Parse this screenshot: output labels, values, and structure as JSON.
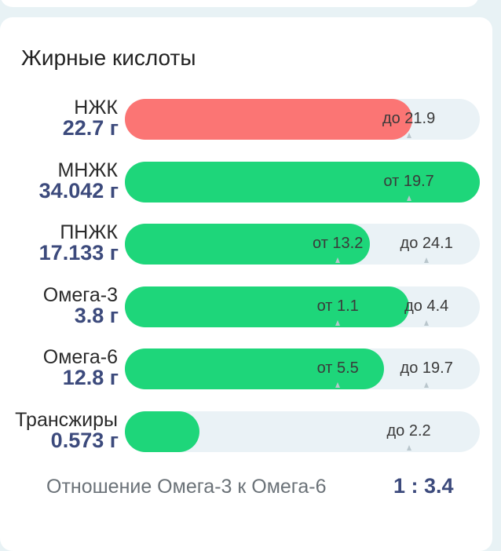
{
  "section_title": "Жирные кислоты",
  "rows": [
    {
      "label": "НЖК",
      "value": "22.7 г",
      "fill_color": "red",
      "fill_fraction": 0.81,
      "markers": [
        {
          "text": "до 21.9",
          "fraction": 0.8
        }
      ]
    },
    {
      "label": "МНЖК",
      "value": "34.042 г",
      "fill_color": "green",
      "fill_fraction": 1.0,
      "markers": [
        {
          "text": "от 19.7",
          "fraction": 0.8
        }
      ]
    },
    {
      "label": "ПНЖК",
      "value": "17.133 г",
      "fill_color": "green",
      "fill_fraction": 0.69,
      "markers": [
        {
          "text": "от 13.2",
          "fraction": 0.6
        },
        {
          "text": "до 24.1",
          "fraction": 0.85
        }
      ]
    },
    {
      "label": "Омега-3",
      "value": "3.8 г",
      "fill_color": "green",
      "fill_fraction": 0.8,
      "markers": [
        {
          "text": "от 1.1",
          "fraction": 0.6
        },
        {
          "text": "до 4.4",
          "fraction": 0.85
        }
      ]
    },
    {
      "label": "Омега-6",
      "value": "12.8 г",
      "fill_color": "green",
      "fill_fraction": 0.73,
      "markers": [
        {
          "text": "от 5.5",
          "fraction": 0.6
        },
        {
          "text": "до 19.7",
          "fraction": 0.85
        }
      ]
    },
    {
      "label": "Трансжиры",
      "value": "0.573 г",
      "fill_color": "green",
      "fill_fraction": 0.21,
      "markers": [
        {
          "text": "до 2.2",
          "fraction": 0.8
        }
      ]
    }
  ],
  "ratio": {
    "label": "Отношение Омега-3 к Омега-6",
    "value": "1 : 3.4"
  }
}
